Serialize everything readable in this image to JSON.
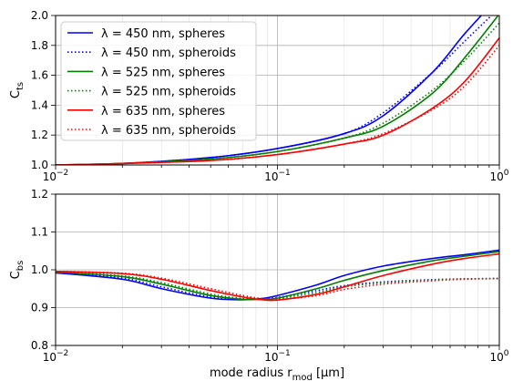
{
  "chart_data": [
    {
      "type": "line",
      "xscale": "log",
      "xlim": [
        0.01,
        1
      ],
      "ylim": [
        1.0,
        2.0
      ],
      "xlabel": "",
      "ylabel": "C_ts",
      "grid": true,
      "legend_position": "top-left",
      "x_tick_labels": [
        "10",
        "10",
        "10"
      ],
      "x_tick_exponents": [
        "−2",
        "−1",
        "0"
      ],
      "y_tick_labels": [
        "1.0",
        "1.2",
        "1.4",
        "1.6",
        "1.8",
        "2.0"
      ],
      "x": [
        0.01,
        0.02,
        0.05,
        0.1,
        0.2,
        0.3,
        0.5,
        0.7,
        1.0
      ],
      "series": [
        {
          "name": "λ = 450 nm, spheres",
          "color": "#0000ff",
          "dash": "solid",
          "values": [
            1.0,
            1.01,
            1.05,
            1.11,
            1.21,
            1.33,
            1.62,
            1.88,
            2.13
          ]
        },
        {
          "name": "λ = 450 nm, spheroids",
          "color": "#0000ff",
          "dash": "dotted",
          "values": [
            1.0,
            1.01,
            1.05,
            1.11,
            1.21,
            1.35,
            1.62,
            1.83,
            2.05
          ]
        },
        {
          "name": "λ = 525 nm, spheres",
          "color": "#008000",
          "dash": "solid",
          "values": [
            1.0,
            1.01,
            1.04,
            1.09,
            1.18,
            1.26,
            1.48,
            1.72,
            2.01
          ]
        },
        {
          "name": "λ = 525 nm, spheroids",
          "color": "#008000",
          "dash": "dotted",
          "values": [
            1.0,
            1.01,
            1.04,
            1.09,
            1.18,
            1.28,
            1.5,
            1.7,
            1.95
          ]
        },
        {
          "name": "λ = 635 nm, spheres",
          "color": "#ff0000",
          "dash": "solid",
          "values": [
            1.0,
            1.01,
            1.03,
            1.07,
            1.14,
            1.2,
            1.38,
            1.56,
            1.85
          ]
        },
        {
          "name": "λ = 635 nm, spheroids",
          "color": "#ff0000",
          "dash": "dotted",
          "values": [
            1.0,
            1.01,
            1.03,
            1.07,
            1.14,
            1.21,
            1.37,
            1.53,
            1.8
          ]
        }
      ]
    },
    {
      "type": "line",
      "xscale": "log",
      "xlim": [
        0.01,
        1
      ],
      "ylim": [
        0.8,
        1.2
      ],
      "xlabel": "mode radius r_mod [μm]",
      "ylabel": "C_bs",
      "grid": true,
      "x_tick_labels": [
        "10",
        "10",
        "10"
      ],
      "x_tick_exponents": [
        "−2",
        "−1",
        "0"
      ],
      "y_tick_labels": [
        "0.8",
        "0.9",
        "1.0",
        "1.1",
        "1.2"
      ],
      "x": [
        0.01,
        0.02,
        0.03,
        0.05,
        0.07,
        0.085,
        0.1,
        0.15,
        0.2,
        0.3,
        0.5,
        0.7,
        1.0
      ],
      "series": [
        {
          "name": "λ = 450 nm, spheres",
          "color": "#0000ff",
          "dash": "solid",
          "values": [
            0.992,
            0.975,
            0.95,
            0.925,
            0.921,
            0.924,
            0.932,
            0.96,
            0.985,
            1.01,
            1.03,
            1.04,
            1.052
          ]
        },
        {
          "name": "λ = 450 nm, spheroids",
          "color": "#0000ff",
          "dash": "dotted",
          "values": [
            0.992,
            0.978,
            0.955,
            0.928,
            0.922,
            0.924,
            0.927,
            0.945,
            0.958,
            0.968,
            0.974,
            0.976,
            0.977
          ]
        },
        {
          "name": "λ = 525 nm, spheres",
          "color": "#008000",
          "dash": "solid",
          "values": [
            0.994,
            0.982,
            0.962,
            0.932,
            0.922,
            0.922,
            0.925,
            0.95,
            0.972,
            0.998,
            1.024,
            1.036,
            1.048
          ]
        },
        {
          "name": "λ = 525 nm, spheroids",
          "color": "#008000",
          "dash": "dotted",
          "values": [
            0.994,
            0.984,
            0.966,
            0.936,
            0.924,
            0.923,
            0.924,
            0.94,
            0.955,
            0.966,
            0.973,
            0.976,
            0.977
          ]
        },
        {
          "name": "λ = 635 nm, spheres",
          "color": "#ff0000",
          "dash": "solid",
          "values": [
            0.996,
            0.99,
            0.975,
            0.945,
            0.928,
            0.921,
            0.92,
            0.935,
            0.955,
            0.985,
            1.015,
            1.03,
            1.042
          ]
        },
        {
          "name": "λ = 635 nm, spheroids",
          "color": "#ff0000",
          "dash": "dotted",
          "values": [
            0.996,
            0.991,
            0.978,
            0.95,
            0.932,
            0.924,
            0.921,
            0.932,
            0.948,
            0.962,
            0.971,
            0.975,
            0.977
          ]
        }
      ]
    }
  ]
}
